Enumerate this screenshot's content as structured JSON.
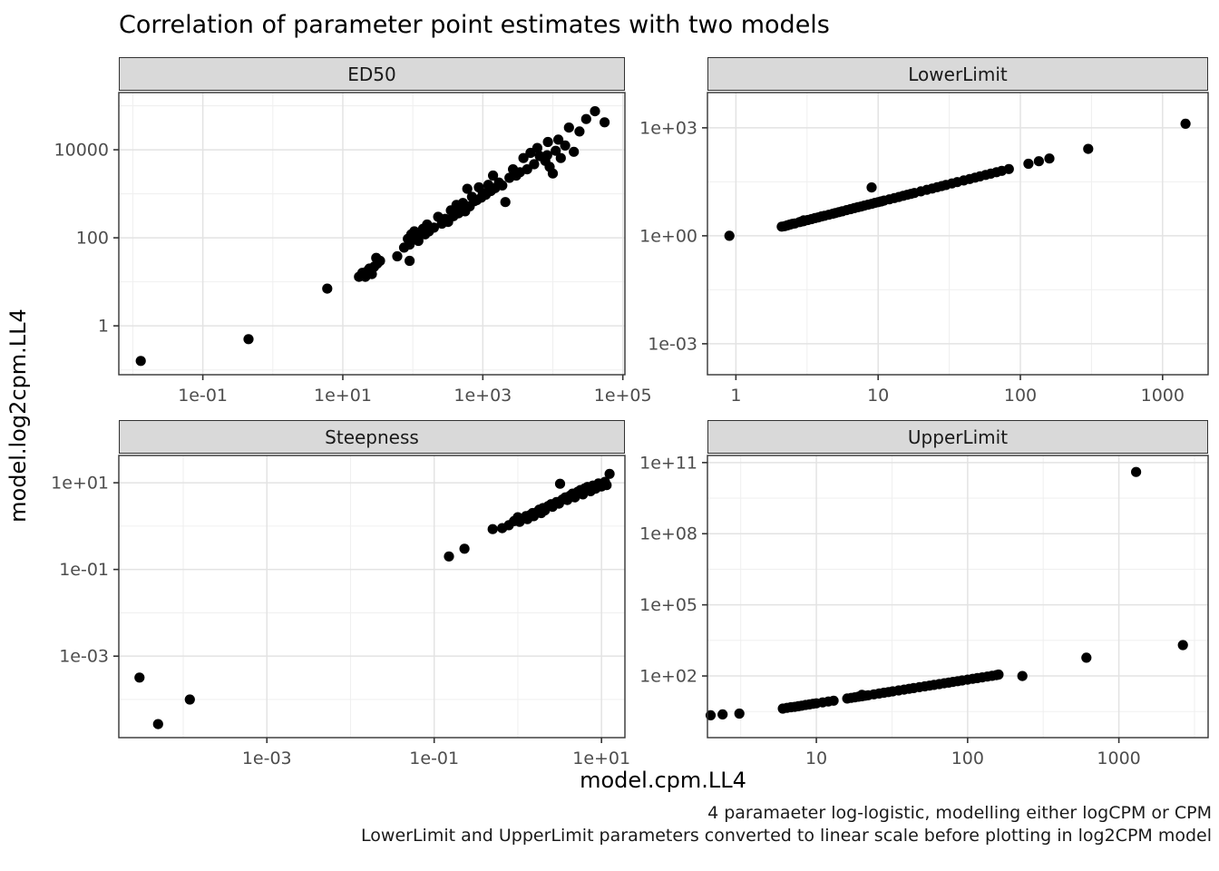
{
  "title": "Correlation of parameter point estimates with two models",
  "axes": {
    "x_title": "model.cpm.LL4",
    "y_title": "model.log2cpm.LL4"
  },
  "caption": {
    "line1": "4 paramaeter log-logistic, modelling either logCPM or CPM",
    "line2": "LowerLimit and UpperLimit parameters converted to linear scale before plotting in log2CPM model"
  },
  "style": {
    "point_color": "#000000",
    "strip_fill": "#d9d9d9",
    "panel_border": "#333333",
    "grid_major": "#e3e3e3",
    "grid_minor": "#f0f0f0",
    "tick_color": "#333333",
    "tick_label_color": "#4d4d4d"
  },
  "chart_data": [
    {
      "type": "scatter",
      "title": "ED50",
      "x": {
        "scale": "log10",
        "domain": [
          -2.2,
          5.03
        ],
        "ticks": [
          {
            "at": -1,
            "label": "1e-01"
          },
          {
            "at": 1,
            "label": "1e+01"
          },
          {
            "at": 3,
            "label": "1e+03"
          },
          {
            "at": 5,
            "label": "1e+05"
          }
        ],
        "minor": [
          -2,
          0,
          2,
          4
        ]
      },
      "y": {
        "scale": "log10",
        "domain": [
          -1.11,
          5.3
        ],
        "ticks": [
          {
            "at": 4,
            "label": "10000"
          },
          {
            "at": 2,
            "label": "100"
          },
          {
            "at": 0,
            "label": "1"
          }
        ],
        "minor": [
          -1,
          1,
          3,
          5
        ]
      },
      "points": [
        [
          0.013,
          0.16
        ],
        [
          0.45,
          0.5
        ],
        [
          6,
          7
        ],
        [
          17,
          13
        ],
        [
          19,
          16
        ],
        [
          21,
          13
        ],
        [
          22,
          17
        ],
        [
          24,
          20
        ],
        [
          26,
          15
        ],
        [
          28,
          22
        ],
        [
          31,
          26
        ],
        [
          34,
          30
        ],
        [
          30,
          35
        ],
        [
          60,
          38
        ],
        [
          75,
          60
        ],
        [
          85,
          95
        ],
        [
          90,
          70
        ],
        [
          95,
          120
        ],
        [
          100,
          95
        ],
        [
          105,
          140
        ],
        [
          110,
          110
        ],
        [
          120,
          85
        ],
        [
          130,
          130
        ],
        [
          140,
          160
        ],
        [
          150,
          120
        ],
        [
          160,
          200
        ],
        [
          170,
          140
        ],
        [
          90,
          30
        ],
        [
          200,
          170
        ],
        [
          230,
          300
        ],
        [
          260,
          210
        ],
        [
          290,
          270
        ],
        [
          320,
          230
        ],
        [
          350,
          420
        ],
        [
          380,
          310
        ],
        [
          420,
          560
        ],
        [
          450,
          360
        ],
        [
          480,
          470
        ],
        [
          520,
          620
        ],
        [
          560,
          400
        ],
        [
          600,
          1300
        ],
        [
          650,
          520
        ],
        [
          700,
          850
        ],
        [
          760,
          680
        ],
        [
          820,
          720
        ],
        [
          880,
          1400
        ],
        [
          950,
          820
        ],
        [
          1000,
          1050
        ],
        [
          1100,
          950
        ],
        [
          1200,
          1600
        ],
        [
          1300,
          1150
        ],
        [
          1400,
          2600
        ],
        [
          1500,
          1350
        ],
        [
          1700,
          1800
        ],
        [
          1900,
          1550
        ],
        [
          2100,
          650
        ],
        [
          2400,
          2300
        ],
        [
          2700,
          3600
        ],
        [
          3000,
          2600
        ],
        [
          3400,
          3100
        ],
        [
          3800,
          6500
        ],
        [
          4300,
          3600
        ],
        [
          4800,
          8500
        ],
        [
          5400,
          4700
        ],
        [
          6000,
          11000
        ],
        [
          6500,
          7200
        ],
        [
          7800,
          5600
        ],
        [
          8300,
          7500
        ],
        [
          8500,
          15000
        ],
        [
          9000,
          4100
        ],
        [
          10000,
          2900
        ],
        [
          11000,
          9500
        ],
        [
          12000,
          17000
        ],
        [
          13000,
          6500
        ],
        [
          15000,
          12500
        ],
        [
          17000,
          32000
        ],
        [
          20000,
          9000
        ],
        [
          24000,
          26000
        ],
        [
          30000,
          50000
        ],
        [
          40000,
          75000
        ],
        [
          55000,
          42000
        ]
      ]
    },
    {
      "type": "scatter",
      "title": "LowerLimit",
      "x": {
        "scale": "log10",
        "domain": [
          -0.2,
          3.32
        ],
        "ticks": [
          {
            "at": 0,
            "label": "1"
          },
          {
            "at": 1,
            "label": "10"
          },
          {
            "at": 2,
            "label": "100"
          },
          {
            "at": 3,
            "label": "1000"
          }
        ],
        "minor": [
          0.5,
          1.5,
          2.5
        ]
      },
      "y": {
        "scale": "log10",
        "domain": [
          -3.86,
          3.98
        ],
        "ticks": [
          {
            "at": 3,
            "label": "1e+03"
          },
          {
            "at": 0,
            "label": "1e+00"
          },
          {
            "at": -3,
            "label": "1e-03"
          }
        ],
        "minor": [
          -1.5,
          1.5
        ]
      },
      "points": [
        [
          0.9,
          1
        ],
        [
          2.1,
          1.8
        ],
        [
          2.2,
          1.85
        ],
        [
          2.3,
          1.95
        ],
        [
          2.4,
          2.05
        ],
        [
          2.5,
          2.15
        ],
        [
          2.6,
          2.2
        ],
        [
          2.8,
          2.4
        ],
        [
          2.9,
          2.5
        ],
        [
          3,
          2.55
        ],
        [
          3,
          2.7
        ],
        [
          3.2,
          2.75
        ],
        [
          3.4,
          2.9
        ],
        [
          3.6,
          3.1
        ],
        [
          3.8,
          3.25
        ],
        [
          4,
          3.45
        ],
        [
          4.2,
          3.6
        ],
        [
          4.5,
          3.85
        ],
        [
          4.8,
          4.1
        ],
        [
          5,
          4.3
        ],
        [
          5.3,
          4.55
        ],
        [
          5.6,
          4.8
        ],
        [
          6,
          5.15
        ],
        [
          6.4,
          5.5
        ],
        [
          6.8,
          5.85
        ],
        [
          7.2,
          6.2
        ],
        [
          7.6,
          6.5
        ],
        [
          8,
          6.9
        ],
        [
          8.5,
          7.3
        ],
        [
          9,
          7.7
        ],
        [
          9,
          22
        ],
        [
          9.5,
          8.2
        ],
        [
          10,
          8.6
        ],
        [
          10.5,
          9
        ],
        [
          11,
          9.5
        ],
        [
          12,
          10.3
        ],
        [
          13,
          11.2
        ],
        [
          14,
          12
        ],
        [
          15,
          12.9
        ],
        [
          16,
          13.8
        ],
        [
          17,
          14.6
        ],
        [
          18,
          15.5
        ],
        [
          20,
          17.2
        ],
        [
          22,
          18.9
        ],
        [
          24,
          20.6
        ],
        [
          26,
          22.4
        ],
        [
          28,
          24.1
        ],
        [
          30,
          25.8
        ],
        [
          33,
          28.4
        ],
        [
          36,
          31
        ],
        [
          40,
          34.4
        ],
        [
          44,
          37.8
        ],
        [
          48,
          41.3
        ],
        [
          52,
          44.7
        ],
        [
          57,
          49
        ],
        [
          62,
          53.3
        ],
        [
          68,
          58.5
        ],
        [
          74,
          63.6
        ],
        [
          83,
          71.4
        ],
        [
          114,
          100
        ],
        [
          135,
          118
        ],
        [
          160,
          140
        ],
        [
          300,
          260
        ],
        [
          1450,
          1300
        ]
      ]
    },
    {
      "type": "scatter",
      "title": "Steepness",
      "x": {
        "scale": "log10",
        "domain": [
          -4.77,
          1.28
        ],
        "ticks": [
          {
            "at": -3,
            "label": "1e-03"
          },
          {
            "at": -1,
            "label": "1e-01"
          },
          {
            "at": 1,
            "label": "1e+01"
          }
        ],
        "minor": [
          -4,
          -2,
          0
        ]
      },
      "y": {
        "scale": "log10",
        "domain": [
          -4.88,
          1.63
        ],
        "ticks": [
          {
            "at": 1,
            "label": "1e+01"
          },
          {
            "at": -1,
            "label": "1e-01"
          },
          {
            "at": -3,
            "label": "1e-03"
          }
        ],
        "minor": [
          -4,
          -2,
          0
        ]
      },
      "points": [
        [
          3e-05,
          0.00032
        ],
        [
          5e-05,
          2.7e-05
        ],
        [
          0.00012,
          0.0001
        ],
        [
          0.15,
          0.2
        ],
        [
          0.23,
          0.3
        ],
        [
          0.5,
          0.85
        ],
        [
          0.65,
          0.9
        ],
        [
          0.78,
          1.05
        ],
        [
          0.9,
          1.3
        ],
        [
          1,
          1.6
        ],
        [
          1.05,
          1.25
        ],
        [
          1.15,
          1.5
        ],
        [
          1.25,
          1.7
        ],
        [
          1.3,
          1.45
        ],
        [
          1.4,
          1.8
        ],
        [
          1.5,
          2
        ],
        [
          1.55,
          1.7
        ],
        [
          1.7,
          2.1
        ],
        [
          1.8,
          2.4
        ],
        [
          1.9,
          2
        ],
        [
          2,
          2.6
        ],
        [
          2.1,
          2.3
        ],
        [
          2.3,
          2.9
        ],
        [
          2.5,
          3.2
        ],
        [
          2.6,
          2.8
        ],
        [
          2.9,
          3.6
        ],
        [
          3.1,
          3.3
        ],
        [
          3.2,
          9.5
        ],
        [
          3.4,
          4.1
        ],
        [
          3.7,
          4.6
        ],
        [
          3.9,
          4
        ],
        [
          4.2,
          5
        ],
        [
          4.5,
          5.6
        ],
        [
          4.8,
          4.6
        ],
        [
          5.2,
          6.2
        ],
        [
          5.6,
          6.8
        ],
        [
          6,
          5.4
        ],
        [
          6.3,
          7.4
        ],
        [
          6.8,
          8
        ],
        [
          7.4,
          6.4
        ],
        [
          7.9,
          8.6
        ],
        [
          8.5,
          7.3
        ],
        [
          9.2,
          9.6
        ],
        [
          10,
          8.2
        ],
        [
          11,
          10.5
        ],
        [
          11.5,
          8.8
        ],
        [
          12.5,
          16
        ]
      ]
    },
    {
      "type": "scatter",
      "title": "UpperLimit",
      "x": {
        "scale": "log10",
        "domain": [
          0.28,
          3.59
        ],
        "ticks": [
          {
            "at": 1,
            "label": "10"
          },
          {
            "at": 2,
            "label": "100"
          },
          {
            "at": 3,
            "label": "1000"
          }
        ],
        "minor": [
          0.5,
          1.5,
          2.5,
          3.5
        ]
      },
      "y": {
        "scale": "log10",
        "domain": [
          -0.6,
          11.3
        ],
        "ticks": [
          {
            "at": 11,
            "label": "1e+11"
          },
          {
            "at": 8,
            "label": "1e+08"
          },
          {
            "at": 5,
            "label": "1e+05"
          },
          {
            "at": 2,
            "label": "1e+02"
          }
        ],
        "minor": [
          0.5,
          3.5,
          6.5,
          9.5
        ]
      },
      "points": [
        [
          2,
          2.2
        ],
        [
          2.4,
          2.4
        ],
        [
          3.1,
          2.6
        ],
        [
          6,
          4.2
        ],
        [
          6.4,
          4.5
        ],
        [
          6.8,
          4.8
        ],
        [
          7.2,
          5
        ],
        [
          7.6,
          5.3
        ],
        [
          8,
          5.6
        ],
        [
          8.5,
          6
        ],
        [
          9,
          6.3
        ],
        [
          9.5,
          6.7
        ],
        [
          10,
          7
        ],
        [
          11,
          7.7
        ],
        [
          12,
          8.4
        ],
        [
          13,
          9.1
        ],
        [
          16,
          11.2
        ],
        [
          17,
          11.9
        ],
        [
          18,
          12.6
        ],
        [
          19,
          13.3
        ],
        [
          20,
          14
        ],
        [
          20,
          16
        ],
        [
          21,
          14.7
        ],
        [
          22,
          15.4
        ],
        [
          24,
          16.8
        ],
        [
          26,
          18.2
        ],
        [
          28,
          19.6
        ],
        [
          30,
          21
        ],
        [
          32,
          22.4
        ],
        [
          35,
          24.5
        ],
        [
          38,
          26.6
        ],
        [
          41,
          28.7
        ],
        [
          44,
          30.8
        ],
        [
          48,
          33.6
        ],
        [
          52,
          36.4
        ],
        [
          56,
          39.2
        ],
        [
          60,
          42
        ],
        [
          65,
          45.5
        ],
        [
          70,
          49
        ],
        [
          75,
          52.5
        ],
        [
          80,
          56
        ],
        [
          86,
          60.2
        ],
        [
          92,
          64.4
        ],
        [
          100,
          70
        ],
        [
          108,
          75.6
        ],
        [
          116,
          81.2
        ],
        [
          125,
          87.5
        ],
        [
          135,
          94.5
        ],
        [
          145,
          101.5
        ],
        [
          155,
          108.5
        ],
        [
          160,
          115
        ],
        [
          230,
          100
        ],
        [
          610,
          590
        ],
        [
          1300,
          40000000000
        ],
        [
          2650,
          2000
        ]
      ]
    }
  ]
}
